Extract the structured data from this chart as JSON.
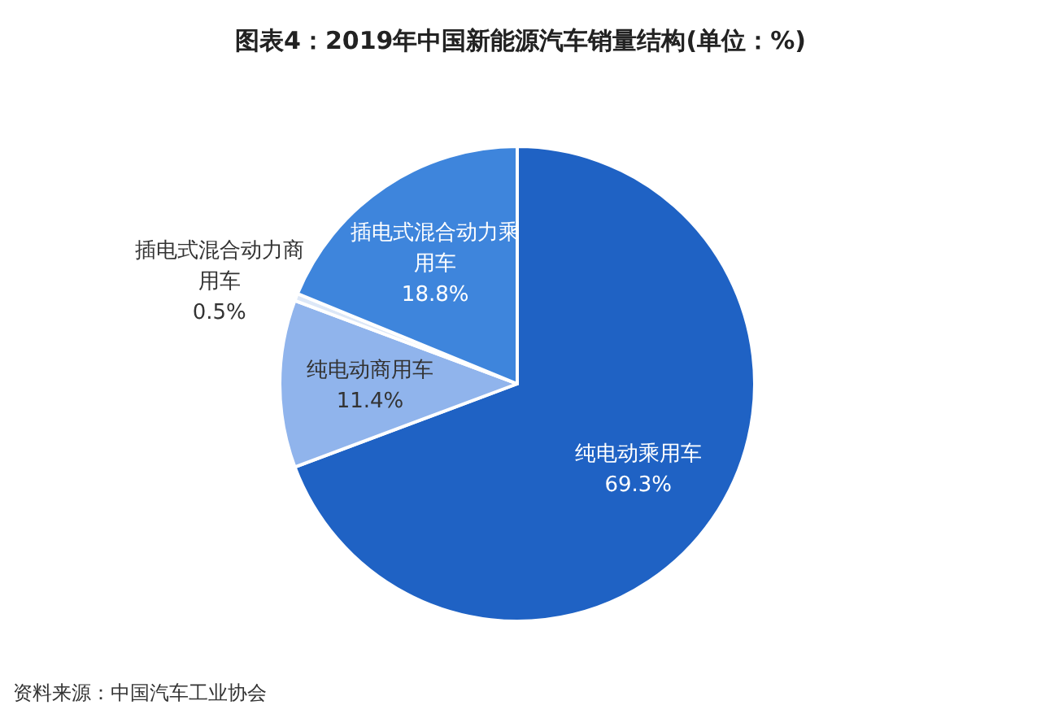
{
  "chart_data": {
    "type": "pie",
    "title": "图表4：2019年中国新能源汽车销量结构(单位：%)",
    "categories": [
      "纯电动乘用车",
      "纯电动商用车",
      "插电式混合动力商用车",
      "插电式混合动力乘用车"
    ],
    "values": [
      69.3,
      11.4,
      0.5,
      18.8
    ],
    "value_labels": [
      "69.3%",
      "11.4%",
      "0.5%",
      "18.8%"
    ],
    "colors": [
      "#1f62c4",
      "#90b4ec",
      "#dce7f7",
      "#3e85dc"
    ],
    "annotations": [
      "资料来源：中国汽车工业协会"
    ]
  }
}
